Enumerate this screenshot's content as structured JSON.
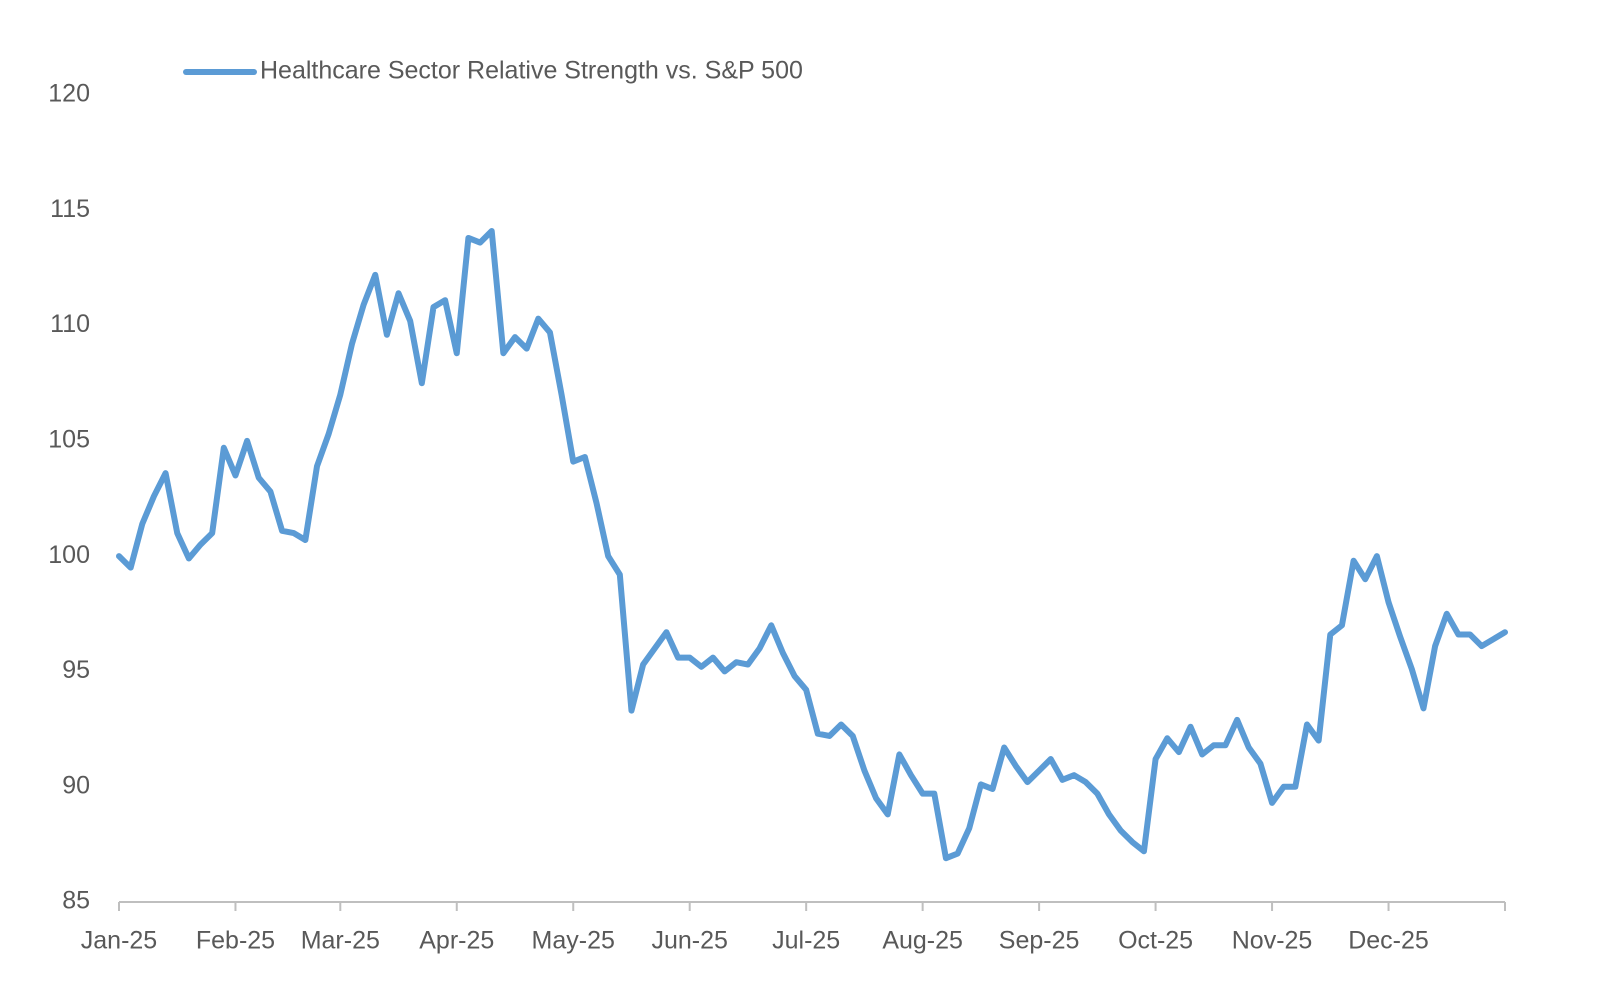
{
  "chart_data": {
    "type": "line",
    "categories": [
      "Jan-25",
      null,
      null,
      null,
      null,
      null,
      null,
      null,
      null,
      null,
      "Feb-25",
      null,
      null,
      null,
      null,
      null,
      null,
      null,
      null,
      "Mar-25",
      null,
      null,
      null,
      null,
      null,
      null,
      null,
      null,
      null,
      "Apr-25",
      null,
      null,
      null,
      null,
      null,
      null,
      null,
      null,
      null,
      "May-25",
      null,
      null,
      null,
      null,
      null,
      null,
      null,
      null,
      null,
      "Jun-25",
      null,
      null,
      null,
      null,
      null,
      null,
      null,
      null,
      null,
      "Jul-25",
      null,
      null,
      null,
      null,
      null,
      null,
      null,
      null,
      null,
      "Aug-25",
      null,
      null,
      null,
      null,
      null,
      null,
      null,
      null,
      null,
      "Sep-25",
      null,
      null,
      null,
      null,
      null,
      null,
      null,
      null,
      null,
      "Oct-25",
      null,
      null,
      null,
      null,
      null,
      null,
      null,
      null,
      null,
      "Nov-25",
      null,
      null,
      null,
      null,
      null,
      null,
      null,
      null,
      null,
      "Dec-25",
      null,
      null,
      null,
      null,
      null,
      null,
      null,
      null,
      null,
      null
    ],
    "series": [
      {
        "name": "Healthcare Sector Relative Strength vs. S&P 500",
        "color": "#5b9bd5",
        "values": [
          100.0,
          99.5,
          101.4,
          102.6,
          103.6,
          101.0,
          99.9,
          100.5,
          101.0,
          104.7,
          103.5,
          105.0,
          103.4,
          102.8,
          101.1,
          101.0,
          100.7,
          103.9,
          105.3,
          107.0,
          109.2,
          110.9,
          112.2,
          109.6,
          111.4,
          110.2,
          107.5,
          110.8,
          111.1,
          108.8,
          113.8,
          113.6,
          114.1,
          108.8,
          109.5,
          109.0,
          110.3,
          109.7,
          107.0,
          104.1,
          104.3,
          102.3,
          100.0,
          99.2,
          93.3,
          95.3,
          96.0,
          96.7,
          95.6,
          95.6,
          95.2,
          95.6,
          95.0,
          95.4,
          95.3,
          96.0,
          97.0,
          95.8,
          94.8,
          94.2,
          92.3,
          92.2,
          92.7,
          92.2,
          90.7,
          89.5,
          88.8,
          91.4,
          90.5,
          89.7,
          89.7,
          86.9,
          87.1,
          88.2,
          90.1,
          89.9,
          91.7,
          90.9,
          90.2,
          90.7,
          91.2,
          90.3,
          90.5,
          90.2,
          89.7,
          88.8,
          88.1,
          87.6,
          87.2,
          91.2,
          92.1,
          91.5,
          92.6,
          91.4,
          91.8,
          91.8,
          92.9,
          91.7,
          91.0,
          89.3,
          90.0,
          90.0,
          92.7,
          92.0,
          96.6,
          97.0,
          99.8,
          99.0,
          100.0,
          98.0,
          96.5,
          95.1,
          93.4,
          96.1,
          97.5,
          96.6,
          96.6,
          96.1,
          96.4,
          96.7
        ]
      }
    ],
    "ylim": [
      85,
      120
    ],
    "yticks": [
      85,
      90,
      95,
      100,
      105,
      110,
      115,
      120
    ],
    "grid": false,
    "legend": "top-left"
  }
}
